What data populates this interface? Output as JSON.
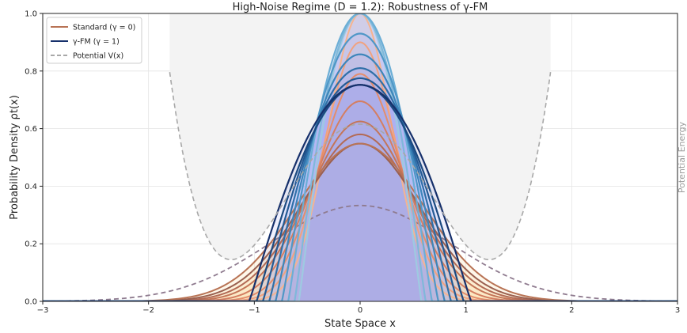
{
  "chart_data": {
    "type": "line",
    "title": "High-Noise Regime (D = 1.2): Robustness of γ-FM",
    "xlabel": "State Space x",
    "ylabel": "Probability Density ρt(x)",
    "right_label": "Potential Energy",
    "xlim": [
      -3,
      3
    ],
    "ylim": [
      0,
      1.0
    ],
    "xticks": [
      "−3",
      "−2",
      "−1",
      "0",
      "1",
      "2",
      "3"
    ],
    "yticks": [
      "0.0",
      "0.2",
      "0.4",
      "0.6",
      "0.8",
      "1.0"
    ],
    "grid": true,
    "legend_position": "top-left",
    "legend": [
      {
        "label": "Standard (γ = 0)",
        "color": "#b87355",
        "style": "solid"
      },
      {
        "label": "γ-FM (γ = 1)",
        "color": "#16306b",
        "style": "solid"
      },
      {
        "label": "Potential V(x)",
        "color": "#a8a8a8",
        "style": "dashed"
      }
    ],
    "potential": {
      "minima_x": [
        -1.22,
        1.22
      ],
      "minimum_y": 0.145,
      "type": "double-well"
    },
    "standard_series": {
      "widths": [
        0.3,
        0.34,
        0.38,
        0.43,
        0.48,
        0.52,
        0.56,
        0.6
      ],
      "peaks": [
        1.0,
        0.9,
        0.79,
        0.695,
        0.625,
        0.58,
        0.548,
        0.548
      ],
      "colors": [
        "#f6b48f",
        "#f1a27f",
        "#e48d6b",
        "#d47e61",
        "#c47558",
        "#b36a55",
        "#9a6050",
        "#b87355"
      ]
    },
    "fm_series": {
      "half_widths": [
        0.58,
        0.62,
        0.68,
        0.74,
        0.8,
        0.86,
        0.92,
        0.98,
        1.05
      ],
      "peaks": [
        1.0,
        1.0,
        1.0,
        0.93,
        0.858,
        0.81,
        0.775,
        0.752,
        0.752
      ],
      "colors": [
        "#9ecae1",
        "#7fb8da",
        "#6baed6",
        "#4f97c7",
        "#3d86bb",
        "#2f6fa8",
        "#235a94",
        "#1b4a80",
        "#16306b"
      ]
    },
    "stationary": {
      "peak": 0.333,
      "width": 0.85,
      "color": "#8f7b8f"
    }
  }
}
